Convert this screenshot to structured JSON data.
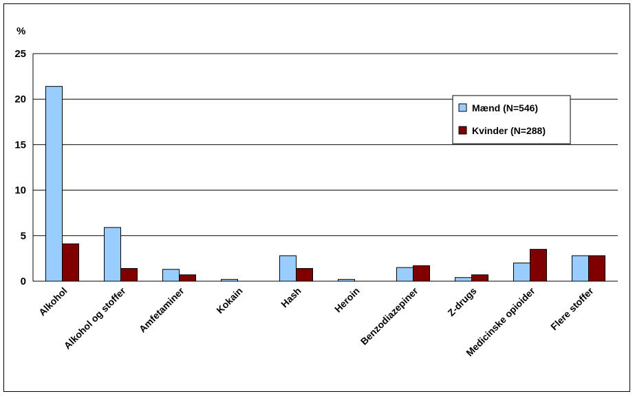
{
  "chart_data": {
    "type": "bar",
    "ylabel": "%",
    "ylim": [
      0,
      25
    ],
    "yticks": [
      "0",
      "5",
      "10",
      "15",
      "20",
      "25"
    ],
    "grid": true,
    "legend_position": "right",
    "categories": [
      "Alkohol",
      "Alkohol og stoffer",
      "Amfetaminer",
      "Kokain",
      "Hash",
      "Heroin",
      "Benzodiazepiner",
      "Z-drugs",
      "Medicinske opioider",
      "Flere stoffer"
    ],
    "series": [
      {
        "name": "Mænd (N=546)",
        "color": "#99ccff",
        "values": [
          21.4,
          5.9,
          1.3,
          0.2,
          2.8,
          0.2,
          1.5,
          0.4,
          2.0,
          2.8
        ]
      },
      {
        "name": "Kvinder (N=288)",
        "color": "#800000",
        "values": [
          4.1,
          1.4,
          0.7,
          0.0,
          1.4,
          0.0,
          1.7,
          0.7,
          3.5,
          2.8
        ]
      }
    ]
  }
}
